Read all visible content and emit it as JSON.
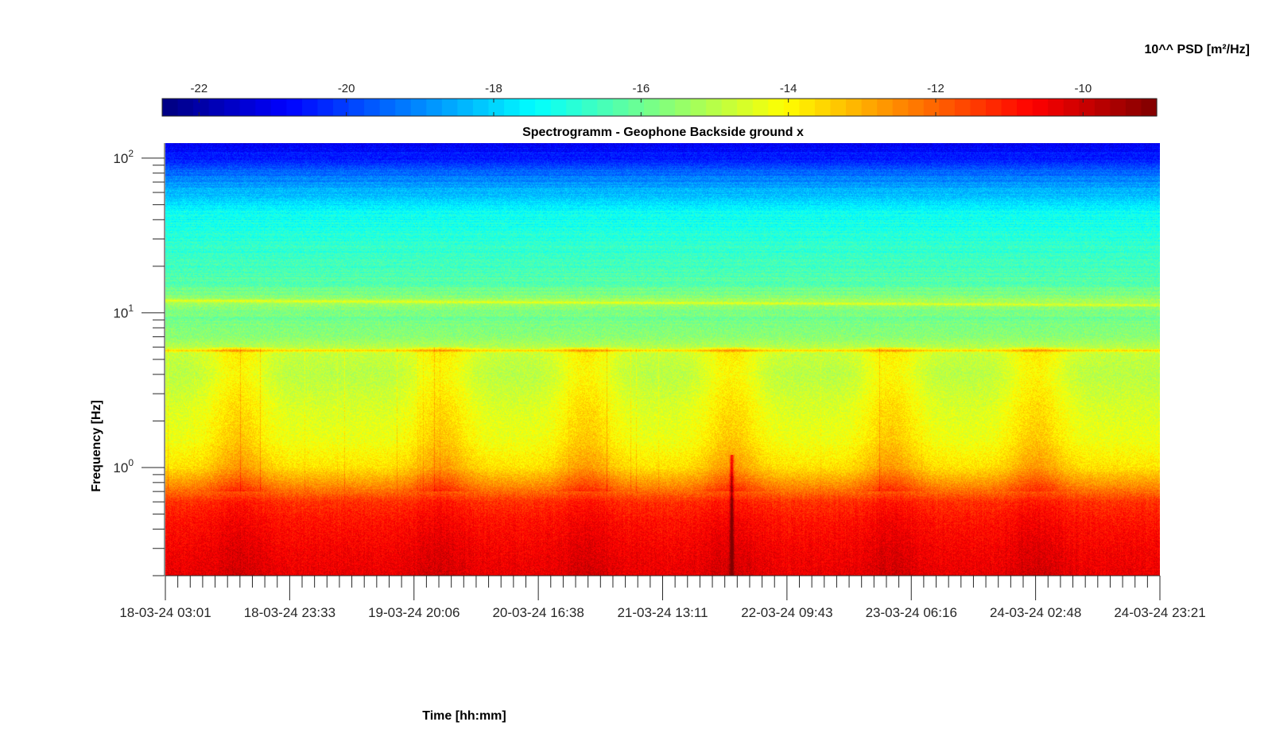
{
  "chart_data": {
    "type": "heatmap",
    "title": "Spectrogramm - Geophone Backside ground x",
    "xlabel": "Time [hh:mm]",
    "ylabel": "Frequency [Hz]",
    "colorbar_label": "10^^ PSD [m²/Hz]",
    "colormap": "jet",
    "clim": [
      -22.5,
      -9
    ],
    "colorbar_ticks": [
      -22,
      -20,
      -18,
      -16,
      -14,
      -12,
      -10
    ],
    "colorbar_tick_labels": [
      "-22",
      "-20",
      "-18",
      "-16",
      "-14",
      "-12",
      "-10"
    ],
    "yscale": "log",
    "ylim": [
      0.2,
      125
    ],
    "yticks": [
      1,
      10,
      100
    ],
    "ytick_labels": [
      {
        "base": "10",
        "exp": "0"
      },
      {
        "base": "10",
        "exp": "1"
      },
      {
        "base": "10",
        "exp": "2"
      }
    ],
    "xlim_days": [
      0,
      6.847
    ],
    "xtick_labels": [
      "18-03-24 03:01",
      "18-03-24 23:33",
      "19-03-24 20:06",
      "20-03-24 16:38",
      "21-03-24 13:11",
      "22-03-24 09:43",
      "23-03-24 06:16",
      "24-03-24 02:48",
      "24-03-24 23:21"
    ],
    "x_minor_ticks_per_major": 10,
    "frequency_profile": {
      "frequency_hz": [
        0.2,
        0.3,
        0.45,
        0.6,
        0.75,
        1.0,
        1.5,
        2.5,
        4.0,
        5.7,
        7.0,
        10.0,
        11.5,
        15,
        20,
        30,
        45,
        60,
        80,
        100,
        125
      ],
      "log10_psd": [
        -10.4,
        -10.6,
        -10.9,
        -11.3,
        -12.5,
        -13.7,
        -14.3,
        -14.6,
        -15.0,
        -14.8,
        -15.6,
        -15.9,
        -15.3,
        -16.2,
        -16.6,
        -16.9,
        -17.3,
        -18.4,
        -19.4,
        -20.4,
        -20.9
      ]
    },
    "features": {
      "constant_line_hz": 5.7,
      "drifting_line_hz": {
        "start": 12.0,
        "end": 11.2
      },
      "broadband_event_day": 3.9,
      "active_daytime_centers_days": [
        0.5,
        1.9,
        2.9,
        3.9,
        5.0,
        6.0
      ]
    }
  }
}
